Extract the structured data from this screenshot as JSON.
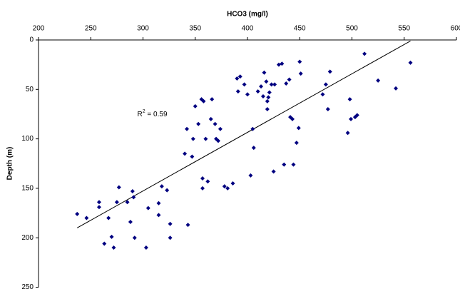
{
  "chart_data": {
    "type": "scatter",
    "x_label": "HCO3 (mg/l)",
    "y_label": "Depth (m)",
    "xlim": [
      200,
      600
    ],
    "xticks": [
      200,
      250,
      300,
      350,
      400,
      450,
      500,
      550,
      600
    ],
    "ylim": [
      0,
      250
    ],
    "yticks": [
      0,
      50,
      100,
      150,
      200,
      250
    ],
    "y_inverted": true,
    "x_axis_position": "top",
    "color": "#000080",
    "x": [
      237,
      246,
      258,
      258,
      267,
      263,
      270,
      272,
      277,
      275,
      285,
      288,
      290,
      291,
      292,
      303,
      305,
      315,
      315,
      318,
      323,
      326,
      326,
      340,
      342,
      343,
      348,
      347,
      350,
      353,
      356,
      358,
      357,
      357,
      360,
      362,
      365,
      366,
      369,
      370,
      372,
      374,
      378,
      381,
      386,
      390,
      391,
      393,
      397,
      400,
      403,
      405,
      406,
      410,
      413,
      415,
      416,
      418,
      419,
      419,
      420,
      421,
      423,
      425,
      426,
      430,
      433,
      435,
      437,
      440,
      441,
      443,
      444,
      447,
      449,
      450,
      451,
      472,
      475,
      477,
      479,
      496,
      498,
      499,
      503,
      505,
      512,
      525,
      542,
      556
    ],
    "values": [
      176,
      180,
      164,
      169,
      180,
      206,
      199,
      210,
      149,
      164,
      164,
      184,
      153,
      159,
      200,
      210,
      170,
      177,
      165,
      148,
      152,
      186,
      200,
      115,
      90,
      187,
      100,
      118,
      67,
      85,
      60,
      62,
      140,
      150,
      100,
      143,
      80,
      60,
      85,
      100,
      102,
      90,
      148,
      150,
      145,
      39,
      52,
      37,
      45,
      55,
      137,
      90,
      109,
      52,
      47,
      57,
      33,
      42,
      62,
      70,
      58,
      53,
      45,
      133,
      45,
      25,
      24,
      126,
      44,
      40,
      78,
      80,
      126,
      104,
      89,
      22,
      34,
      55,
      45,
      70,
      32,
      94,
      60,
      80,
      78,
      76,
      14,
      41,
      49,
      23
    ],
    "trendline": {
      "x": [
        237,
        556
      ],
      "y": [
        190,
        1
      ]
    },
    "annotation": {
      "text": "R",
      "sup": "2",
      "rest": " = 0.59",
      "x": 300,
      "y": 75
    }
  }
}
